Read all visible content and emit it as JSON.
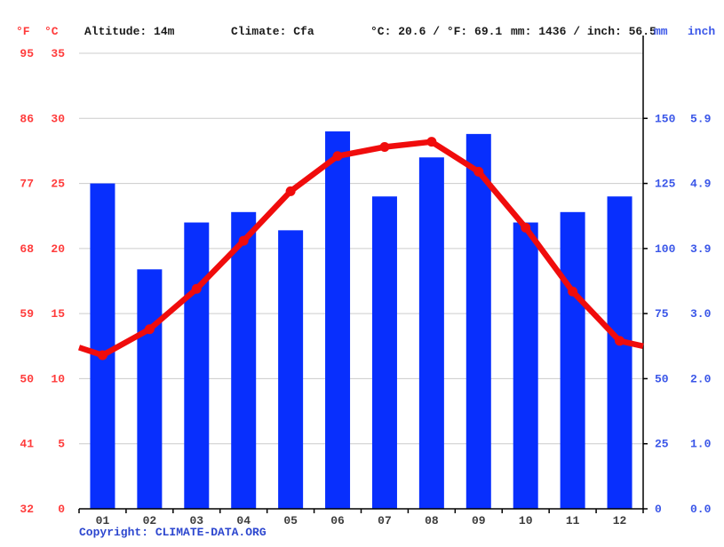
{
  "header": {
    "fahrenheit_label": "°F",
    "celsius_label": "°C",
    "altitude": "Altitude: 14m",
    "climate": "Climate: Cfa",
    "avg_temp": "°C: 20.6 / °F: 69.1",
    "precip_total": "mm: 1436 / inch: 56.5",
    "mm_label": "mm",
    "inch_label": "inch"
  },
  "footer": {
    "copyright": "Copyright: CLIMATE-DATA.ORG"
  },
  "chart_data": {
    "type": "bar+line combo (climate chart)",
    "categories": [
      "01",
      "02",
      "03",
      "04",
      "05",
      "06",
      "07",
      "08",
      "09",
      "10",
      "11",
      "12"
    ],
    "series": [
      {
        "name": "precipitation",
        "type": "bar",
        "unit": "mm",
        "values": [
          125,
          92,
          110,
          114,
          107,
          145,
          120,
          135,
          144,
          110,
          114,
          120
        ],
        "color": "#082ffd"
      },
      {
        "name": "temperature",
        "type": "line",
        "unit": "°C",
        "values": [
          11.8,
          13.8,
          16.9,
          20.6,
          24.4,
          27.1,
          27.8,
          28.2,
          25.9,
          21.6,
          16.7,
          12.9
        ],
        "edge_extension_c": {
          "left": 12.4,
          "right": 12.5
        },
        "color": "#f00c0c"
      }
    ],
    "temp_axis": {
      "side": "left",
      "celsius_ticks": [
        35,
        30,
        25,
        20,
        15,
        10,
        5,
        0
      ],
      "fahrenheit_ticks": [
        95,
        86,
        77,
        68,
        59,
        50,
        41,
        32
      ],
      "range_c": [
        0,
        35
      ],
      "label_color": "#ff3b3b"
    },
    "precip_axis": {
      "side": "right",
      "mm_ticks": [
        150,
        125,
        100,
        75,
        50,
        25,
        0
      ],
      "inch_ticks": [
        "5.9",
        "4.9",
        "3.9",
        "3.0",
        "2.0",
        "1.0",
        "0.0"
      ],
      "range_mm": [
        0,
        175
      ],
      "label_color": "#3a56e8"
    },
    "grid": "horizontal gridlines on, color #cccccc",
    "legend_position": "none",
    "month_label_color": "#3c3c3c"
  }
}
